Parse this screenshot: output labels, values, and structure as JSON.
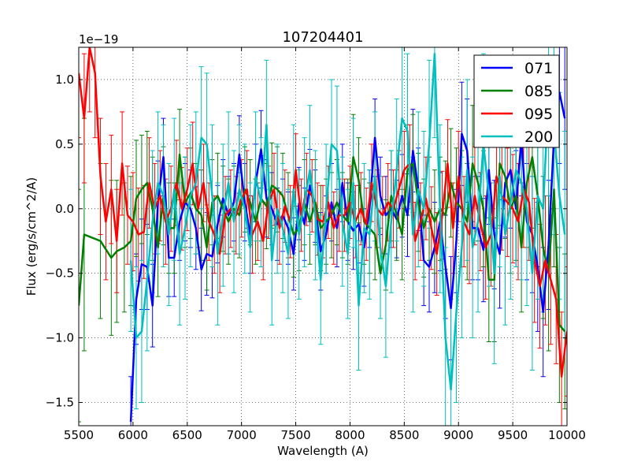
{
  "chart_data": {
    "type": "line",
    "title": "107204401",
    "xlabel": "Wavelength (A)",
    "ylabel": "Flux (erg/s/cm^2/A)",
    "offset_label": "1e−19",
    "xlim": [
      5500,
      10000
    ],
    "ylim": [
      -1.68,
      1.25
    ],
    "xticks": [
      5500,
      6000,
      6500,
      7000,
      7500,
      8000,
      8500,
      9000,
      9500,
      10000
    ],
    "xtick_labels": [
      "5500",
      "6000",
      "6500",
      "7000",
      "7500",
      "8000",
      "8500",
      "9000",
      "9500",
      "10000"
    ],
    "yticks": [
      -1.5,
      -1.0,
      -0.5,
      0.0,
      0.5,
      1.0
    ],
    "ytick_labels": [
      "−1.5",
      "−1.0",
      "−0.5",
      "0.0",
      "0.5",
      "1.0"
    ],
    "grid": true,
    "legend_position": "top-right",
    "series": [
      {
        "name": "071",
        "color": "#0000ff",
        "x": [
          5980,
          6030,
          6080,
          6130,
          6180,
          6230,
          6280,
          6330,
          6380,
          6430,
          6480,
          6530,
          6580,
          6630,
          6680,
          6730,
          6780,
          6830,
          6880,
          6930,
          6980,
          7030,
          7080,
          7130,
          7180,
          7230,
          7280,
          7330,
          7380,
          7430,
          7480,
          7530,
          7580,
          7630,
          7680,
          7730,
          7780,
          7830,
          7880,
          7930,
          7980,
          8030,
          8080,
          8130,
          8180,
          8230,
          8280,
          8330,
          8380,
          8430,
          8480,
          8530,
          8580,
          8630,
          8680,
          8730,
          8780,
          8830,
          8880,
          8930,
          8980,
          9030,
          9080,
          9130,
          9180,
          9230,
          9280,
          9330,
          9380,
          9430,
          9480,
          9530,
          9580,
          9630,
          9680,
          9730,
          9780,
          9830,
          9880,
          9930,
          9980
        ],
        "y": [
          -1.65,
          -0.7,
          -0.43,
          -0.45,
          -0.75,
          0.05,
          0.4,
          -0.38,
          -0.38,
          -0.1,
          0.05,
          0.0,
          -0.15,
          -0.47,
          -0.35,
          -0.37,
          -0.12,
          0.08,
          -0.05,
          0.05,
          0.42,
          0.05,
          -0.2,
          0.2,
          0.46,
          0.08,
          0.0,
          -0.12,
          -0.05,
          -0.15,
          -0.35,
          0.04,
          -0.12,
          0.18,
          0.02,
          -0.33,
          -0.2,
          0.05,
          -0.15,
          0.2,
          -0.1,
          -0.17,
          -0.12,
          -0.3,
          0.0,
          0.55,
          0.1,
          -0.05,
          0.0,
          -0.08,
          0.1,
          -0.05,
          0.45,
          0.15,
          -0.4,
          -0.45,
          -0.3,
          -0.1,
          -0.45,
          -0.77,
          -0.25,
          0.58,
          0.45,
          -0.15,
          -0.15,
          -0.32,
          0.3,
          -0.2,
          -0.35,
          0.2,
          0.3,
          0.0,
          0.55,
          -0.1,
          -0.2,
          -0.45,
          -0.8,
          -0.28,
          0.55,
          0.9,
          0.7
        ],
        "err": [
          0.35,
          0.35,
          0.35,
          0.33,
          0.32,
          0.32,
          0.3,
          0.3,
          0.3,
          0.3,
          0.3,
          0.3,
          0.32,
          0.32,
          0.32,
          0.32,
          0.3,
          0.3,
          0.3,
          0.3,
          0.3,
          0.3,
          0.3,
          0.3,
          0.3,
          0.3,
          0.28,
          0.28,
          0.28,
          0.28,
          0.28,
          0.28,
          0.28,
          0.28,
          0.28,
          0.3,
          0.3,
          0.3,
          0.3,
          0.3,
          0.3,
          0.3,
          0.3,
          0.3,
          0.3,
          0.3,
          0.3,
          0.3,
          0.3,
          0.3,
          0.32,
          0.32,
          0.32,
          0.32,
          0.35,
          0.35,
          0.35,
          0.38,
          0.4,
          0.4,
          0.4,
          0.4,
          0.4,
          0.4,
          0.4,
          0.4,
          0.42,
          0.42,
          0.42,
          0.42,
          0.45,
          0.45,
          0.45,
          0.45,
          0.45,
          0.5,
          0.5,
          0.5,
          0.55,
          0.55,
          0.55
        ]
      },
      {
        "name": "085",
        "color": "#008000",
        "x": [
          5500,
          5550,
          5700,
          5800,
          5850,
          5920,
          5980,
          6030,
          6080,
          6130,
          6180,
          6230,
          6280,
          6330,
          6380,
          6430,
          6480,
          6530,
          6580,
          6630,
          6680,
          6730,
          6780,
          6830,
          6880,
          6930,
          6980,
          7030,
          7080,
          7130,
          7180,
          7230,
          7280,
          7330,
          7380,
          7430,
          7480,
          7530,
          7580,
          7630,
          7680,
          7730,
          7780,
          7830,
          7880,
          7930,
          7980,
          8030,
          8080,
          8130,
          8180,
          8230,
          8280,
          8330,
          8380,
          8430,
          8480,
          8530,
          8580,
          8630,
          8680,
          8730,
          8780,
          8830,
          8880,
          8930,
          8980,
          9030,
          9080,
          9130,
          9180,
          9230,
          9280,
          9330,
          9380,
          9430,
          9480,
          9530,
          9580,
          9630,
          9680,
          9730,
          9780,
          9830,
          9880,
          9930,
          9980
        ],
        "y": [
          -0.75,
          -0.2,
          -0.25,
          -0.38,
          -0.33,
          -0.3,
          -0.25,
          0.08,
          0.15,
          0.2,
          0.0,
          -0.3,
          0.1,
          -0.15,
          -0.15,
          0.42,
          0.05,
          0.12,
          0.0,
          -0.05,
          -0.3,
          0.05,
          0.1,
          0.0,
          -0.1,
          0.0,
          -0.05,
          0.15,
          0.05,
          -0.1,
          0.08,
          0.02,
          0.18,
          0.15,
          0.1,
          -0.05,
          -0.2,
          -0.15,
          0.05,
          -0.1,
          0.05,
          -0.15,
          -0.1,
          -0.05,
          0.05,
          -0.05,
          -0.1,
          0.4,
          0.22,
          -0.1,
          -0.15,
          -0.2,
          -0.5,
          -0.28,
          0.1,
          -0.05,
          -0.2,
          0.3,
          0.35,
          0.05,
          -0.15,
          0.0,
          -0.1,
          0.0,
          -0.05,
          0.2,
          0.05,
          0.0,
          -0.1,
          0.35,
          0.2,
          0.0,
          -0.55,
          -0.55,
          0.35,
          0.25,
          0.0,
          0.1,
          -0.3,
          0.2,
          0.4,
          0.1,
          -0.3,
          -0.5,
          0.15,
          -0.9,
          -0.95
        ],
        "err": [
          0.9,
          0.9,
          0.6,
          0.6,
          0.55,
          0.5,
          0.5,
          0.45,
          0.42,
          0.4,
          0.4,
          0.38,
          0.38,
          0.35,
          0.35,
          0.35,
          0.35,
          0.35,
          0.35,
          0.35,
          0.33,
          0.33,
          0.33,
          0.33,
          0.33,
          0.33,
          0.33,
          0.33,
          0.33,
          0.33,
          0.33,
          0.33,
          0.33,
          0.33,
          0.33,
          0.33,
          0.33,
          0.33,
          0.33,
          0.33,
          0.33,
          0.33,
          0.33,
          0.33,
          0.33,
          0.33,
          0.33,
          0.33,
          0.33,
          0.33,
          0.35,
          0.35,
          0.35,
          0.35,
          0.35,
          0.35,
          0.35,
          0.35,
          0.38,
          0.38,
          0.38,
          0.4,
          0.4,
          0.4,
          0.42,
          0.42,
          0.42,
          0.45,
          0.45,
          0.45,
          0.45,
          0.45,
          0.48,
          0.48,
          0.48,
          0.48,
          0.5,
          0.5,
          0.5,
          0.5,
          0.55,
          0.55,
          0.55,
          0.6,
          0.6,
          0.6,
          0.6
        ]
      },
      {
        "name": "095",
        "color": "#ff0000",
        "x": [
          5500,
          5550,
          5600,
          5650,
          5700,
          5750,
          5800,
          5850,
          5900,
          5950,
          6000,
          6050,
          6100,
          6150,
          6200,
          6250,
          6300,
          6350,
          6400,
          6450,
          6500,
          6550,
          6600,
          6650,
          6700,
          6750,
          6800,
          6850,
          6900,
          6950,
          7000,
          7050,
          7100,
          7150,
          7200,
          7250,
          7300,
          7350,
          7400,
          7450,
          7500,
          7550,
          7600,
          7650,
          7700,
          7750,
          7800,
          7850,
          7900,
          7950,
          8000,
          8050,
          8100,
          8150,
          8200,
          8250,
          8300,
          8350,
          8400,
          8450,
          8500,
          8550,
          8600,
          8650,
          8700,
          8750,
          8800,
          8850,
          8900,
          8950,
          9000,
          9050,
          9100,
          9150,
          9200,
          9250,
          9300,
          9350,
          9400,
          9450,
          9500,
          9550,
          9600,
          9650,
          9700,
          9750,
          9800,
          9850,
          9900,
          9950,
          10000
        ],
        "y": [
          1.05,
          0.7,
          1.25,
          1.05,
          0.25,
          -0.1,
          0.15,
          -0.25,
          0.35,
          -0.05,
          -0.1,
          -0.2,
          -0.18,
          0.2,
          0.0,
          0.1,
          -0.1,
          0.0,
          0.2,
          0.0,
          0.15,
          0.35,
          0.0,
          0.2,
          -0.1,
          -0.2,
          -0.35,
          -0.05,
          0.0,
          -0.05,
          0.08,
          0.15,
          -0.2,
          -0.1,
          -0.25,
          0.05,
          0.15,
          -0.15,
          0.02,
          -0.1,
          0.3,
          -0.05,
          0.15,
          0.1,
          -0.08,
          -0.1,
          0.05,
          -0.15,
          -0.05,
          -0.05,
          0.05,
          -0.1,
          0.0,
          -0.12,
          0.2,
          0.0,
          -0.05,
          0.05,
          0.0,
          0.15,
          0.3,
          0.35,
          -0.25,
          -0.1,
          0.08,
          -0.15,
          -0.35,
          -0.05,
          0.35,
          -0.15,
          0.25,
          -0.1,
          -0.2,
          0.1,
          -0.1,
          -0.3,
          -0.2,
          0.25,
          0.1,
          0.05,
          0.0,
          -0.1,
          0.15,
          0.05,
          -0.4,
          -0.6,
          -0.4,
          -0.55,
          -0.7,
          -1.3,
          -0.95
        ],
        "err": [
          0.5,
          0.5,
          0.5,
          0.5,
          0.45,
          0.45,
          0.42,
          0.4,
          0.4,
          0.38,
          0.38,
          0.36,
          0.36,
          0.35,
          0.35,
          0.35,
          0.33,
          0.33,
          0.33,
          0.32,
          0.32,
          0.32,
          0.3,
          0.3,
          0.3,
          0.3,
          0.3,
          0.3,
          0.3,
          0.3,
          0.3,
          0.3,
          0.3,
          0.3,
          0.3,
          0.28,
          0.28,
          0.28,
          0.28,
          0.28,
          0.28,
          0.28,
          0.28,
          0.28,
          0.28,
          0.28,
          0.28,
          0.28,
          0.28,
          0.28,
          0.28,
          0.28,
          0.28,
          0.28,
          0.3,
          0.3,
          0.3,
          0.3,
          0.3,
          0.3,
          0.3,
          0.3,
          0.3,
          0.3,
          0.32,
          0.32,
          0.32,
          0.34,
          0.34,
          0.35,
          0.35,
          0.35,
          0.38,
          0.38,
          0.38,
          0.4,
          0.4,
          0.4,
          0.42,
          0.42,
          0.42,
          0.45,
          0.45,
          0.45,
          0.48,
          0.48,
          0.5,
          0.5,
          0.5,
          0.5,
          0.5
        ]
      },
      {
        "name": "200",
        "color": "#00bfbf",
        "x": [
          5980,
          6030,
          6080,
          6130,
          6180,
          6230,
          6280,
          6330,
          6380,
          6430,
          6480,
          6530,
          6580,
          6630,
          6680,
          6730,
          6780,
          6830,
          6880,
          6930,
          6980,
          7030,
          7080,
          7130,
          7180,
          7230,
          7280,
          7330,
          7380,
          7430,
          7480,
          7530,
          7580,
          7630,
          7680,
          7730,
          7780,
          7830,
          7880,
          7930,
          7980,
          8030,
          8080,
          8130,
          8180,
          8230,
          8280,
          8330,
          8380,
          8430,
          8480,
          8530,
          8580,
          8630,
          8680,
          8730,
          8780,
          8830,
          8880,
          8930,
          8980,
          9030,
          9080,
          9130,
          9180,
          9230,
          9280,
          9330,
          9380,
          9430,
          9480,
          9530,
          9580,
          9630,
          9680,
          9730,
          9780,
          9830,
          9880,
          9930,
          9980
        ],
        "y": [
          -0.4,
          -1.0,
          -0.95,
          -0.55,
          -0.1,
          0.2,
          0.1,
          -0.2,
          0.15,
          -0.35,
          -0.15,
          0.1,
          0.2,
          0.55,
          0.5,
          0.1,
          -0.35,
          -0.05,
          0.2,
          -0.1,
          0.15,
          0.0,
          -0.3,
          0.25,
          0.05,
          0.65,
          -0.4,
          0.0,
          -0.15,
          -0.35,
          0.15,
          -0.2,
          0.05,
          0.3,
          -0.05,
          -0.55,
          0.0,
          0.5,
          0.45,
          -0.1,
          -0.35,
          0.2,
          -0.75,
          -0.15,
          -0.2,
          0.25,
          -0.3,
          -0.6,
          -0.1,
          0.3,
          0.7,
          0.6,
          -0.2,
          0.15,
          0.0,
          0.5,
          1.2,
          0.0,
          -1.0,
          -1.4,
          -0.8,
          -0.3,
          0.3,
          -0.3,
          -0.1,
          0.5,
          0.1,
          -0.5,
          0.25,
          -0.2,
          0.05,
          0.3,
          0.2,
          0.0,
          -0.5,
          0.1,
          0.0,
          0.9,
          0.6,
          0.1,
          -0.2
        ],
        "err": [
          0.55,
          0.55,
          0.55,
          0.55,
          0.55,
          0.55,
          0.55,
          0.55,
          0.55,
          0.55,
          0.55,
          0.55,
          0.55,
          0.55,
          0.55,
          0.55,
          0.55,
          0.55,
          0.55,
          0.55,
          0.5,
          0.5,
          0.5,
          0.5,
          0.5,
          0.5,
          0.5,
          0.5,
          0.5,
          0.5,
          0.5,
          0.5,
          0.5,
          0.5,
          0.5,
          0.5,
          0.5,
          0.5,
          0.5,
          0.5,
          0.5,
          0.5,
          0.5,
          0.5,
          0.5,
          0.5,
          0.55,
          0.55,
          0.55,
          0.55,
          0.6,
          0.6,
          0.6,
          0.6,
          0.6,
          0.65,
          0.65,
          0.65,
          0.7,
          0.7,
          0.7,
          0.7,
          0.7,
          0.7,
          0.7,
          0.7,
          0.7,
          0.7,
          0.7,
          0.7,
          0.75,
          0.75,
          0.75,
          0.75,
          0.75,
          0.8,
          0.8,
          0.8,
          0.8,
          0.8,
          0.8
        ]
      }
    ]
  }
}
